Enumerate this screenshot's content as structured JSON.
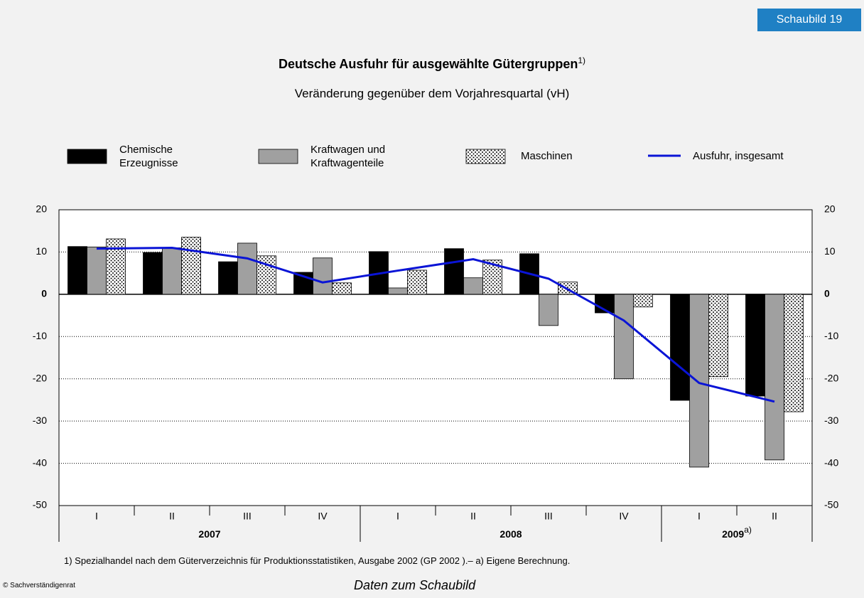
{
  "badge": "Schaubild 19",
  "chart_data": {
    "type": "bar",
    "title": "Deutsche Ausfuhr für ausgewählte Gütergruppen",
    "title_note": "1)",
    "subtitle": "Veränderung gegenüber dem Vorjahresquartal (vH)",
    "groups": [
      {
        "label": "2007",
        "categories": [
          "I",
          "II",
          "III",
          "IV"
        ]
      },
      {
        "label": "2008",
        "categories": [
          "I",
          "II",
          "III",
          "IV"
        ]
      },
      {
        "label": "2009",
        "note": "a)",
        "categories": [
          "I",
          "II"
        ]
      }
    ],
    "series": [
      {
        "name": "Chemische Erzeugnisse",
        "type": "bar",
        "color": "#000000",
        "values": [
          11.3,
          9.9,
          7.7,
          5.2,
          10.1,
          10.8,
          9.6,
          -4.4,
          -25.1,
          -24.1
        ]
      },
      {
        "name": "Kraftwagen und Kraftwagenteile",
        "type": "bar",
        "color": "#a0a0a0",
        "values": [
          11.2,
          11,
          12.1,
          8.6,
          1.5,
          3.9,
          -7.4,
          -20,
          -40.9,
          -39.2
        ]
      },
      {
        "name": "Maschinen",
        "type": "bar",
        "color": "#ffffff",
        "pattern": "dots",
        "values": [
          13.1,
          13.5,
          9.1,
          2.7,
          5.7,
          8.1,
          2.9,
          -3,
          -19.5,
          -27.8
        ]
      },
      {
        "name": "Ausfuhr, insgesamt",
        "type": "line",
        "color": "#0a14d6",
        "values": [
          10.8,
          11,
          8.5,
          2.8,
          5.6,
          8.3,
          3.7,
          -6.2,
          -21,
          -25.4
        ]
      }
    ],
    "ylim": [
      -50,
      20
    ],
    "yticks": [
      -50,
      -40,
      -30,
      -20,
      -10,
      0,
      10,
      20
    ],
    "y2lim": [
      -50,
      20
    ],
    "y2ticks": [
      -50,
      -40,
      -30,
      -20,
      -10,
      0,
      10,
      20
    ],
    "grid": true
  },
  "footnote": "1) Spezialhandel nach dem Güterverzeichnis für Produktionsstatistiken, Ausgabe 2002 (GP 2002 ).– a) Eigene Berechnung.",
  "copyright": "© Sachverständigenrat",
  "link": "Daten zum Schaubild"
}
